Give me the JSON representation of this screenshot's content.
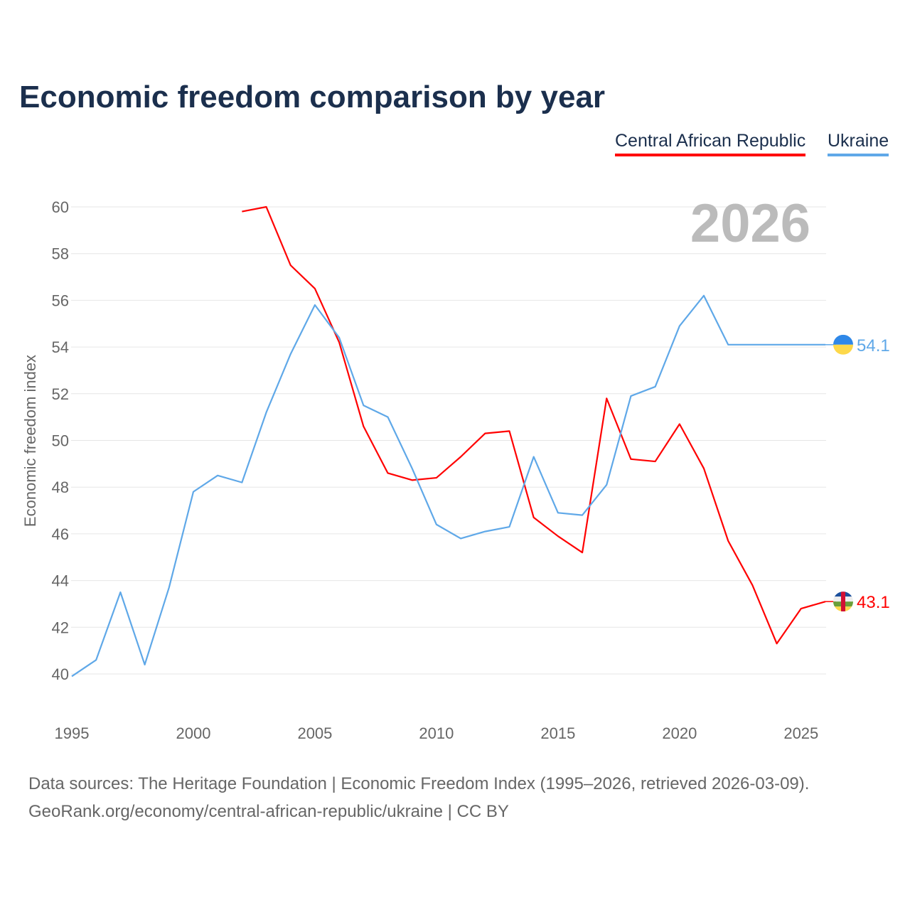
{
  "title": "Economic freedom comparison by year",
  "sources": [
    "Data sources: The Heritage Foundation | Economic Freedom Index (1995–2026, retrieved 2026-03-09).",
    "GeoRank.org/economy/central-african-republic/ukraine | CC BY"
  ],
  "chart_data": {
    "type": "line",
    "title": "Economic freedom comparison by year",
    "xlabel": "",
    "ylabel": "Economic freedom index",
    "xlim": [
      1995,
      2026
    ],
    "ylim": [
      40,
      60
    ],
    "x_ticks": [
      "1995",
      "2000",
      "2005",
      "2010",
      "2015",
      "2020",
      "2025"
    ],
    "y_ticks": [
      "40",
      "42",
      "44",
      "46",
      "48",
      "50",
      "52",
      "54",
      "56",
      "58",
      "60"
    ],
    "year_label": "2026",
    "legend_position": "top-right",
    "grid": true,
    "series": [
      {
        "name": "Central African Republic",
        "color": "#ff0000",
        "flag": "central-african-republic-flag",
        "end_label": "43.1",
        "x": [
          2002,
          2003,
          2004,
          2005,
          2006,
          2007,
          2008,
          2009,
          2010,
          2011,
          2012,
          2013,
          2014,
          2015,
          2016,
          2017,
          2018,
          2019,
          2020,
          2021,
          2022,
          2023,
          2024,
          2025,
          2026
        ],
        "values": [
          59.8,
          60.0,
          57.5,
          56.5,
          54.2,
          50.6,
          48.6,
          48.3,
          48.4,
          49.3,
          50.3,
          50.4,
          46.7,
          45.9,
          45.2,
          51.8,
          49.2,
          49.1,
          50.7,
          48.8,
          45.7,
          43.8,
          41.3,
          42.8,
          43.1
        ]
      },
      {
        "name": "Ukraine",
        "color": "#5fa8e8",
        "flag": "ukraine-flag",
        "end_label": "54.1",
        "x": [
          1995,
          1996,
          1997,
          1998,
          1999,
          2000,
          2001,
          2002,
          2003,
          2004,
          2005,
          2006,
          2007,
          2008,
          2009,
          2010,
          2011,
          2012,
          2013,
          2014,
          2015,
          2016,
          2017,
          2018,
          2019,
          2020,
          2021,
          2022,
          2023,
          2024,
          2025,
          2026
        ],
        "values": [
          39.9,
          40.6,
          43.5,
          40.4,
          43.7,
          47.8,
          48.5,
          48.2,
          51.2,
          53.7,
          55.8,
          54.4,
          51.5,
          51.0,
          48.8,
          46.4,
          45.8,
          46.1,
          46.3,
          49.3,
          46.9,
          46.8,
          48.1,
          51.9,
          52.3,
          54.9,
          56.2,
          54.1,
          54.1,
          54.1,
          54.1,
          54.1
        ]
      }
    ]
  }
}
